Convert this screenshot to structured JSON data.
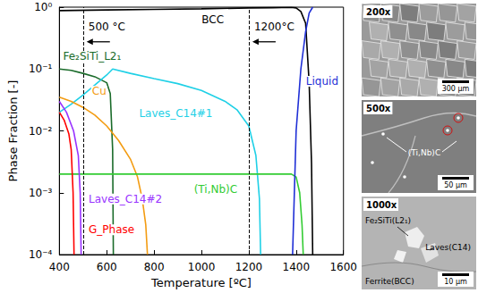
{
  "chart_data": {
    "type": "line",
    "xlabel": "Temperature [ºC]",
    "ylabel": "Phase Fraction [-]",
    "log": "y",
    "grid": false,
    "xlim": [
      400,
      1600
    ],
    "xticks": [
      400,
      600,
      800,
      1000,
      1200,
      1400,
      1600
    ],
    "ylim": [
      0.0001,
      1
    ],
    "yticks": [
      {
        "value": 0.0001,
        "label": "10⁻⁴"
      },
      {
        "value": 0.001,
        "label": "10⁻³"
      },
      {
        "value": 0.01,
        "label": "10⁻²"
      },
      {
        "value": 0.1,
        "label": "10⁻¹"
      },
      {
        "value": 1,
        "label": "10⁰"
      }
    ],
    "series": [
      {
        "name": "BCC",
        "color": "#000000",
        "x": [
          400,
          600,
          800,
          1000,
          1200,
          1300,
          1380,
          1400,
          1420,
          1440,
          1455,
          1465,
          1470
        ],
        "values": [
          0.88,
          0.9,
          0.92,
          0.94,
          0.97,
          0.98,
          0.99,
          0.97,
          0.85,
          0.55,
          0.06,
          0.003,
          0.0001
        ]
      },
      {
        "name": "Fe₂SiTi_L2₁",
        "color": "#1a6b2a",
        "x": [
          400,
          450,
          500,
          550,
          600,
          615,
          625,
          628
        ],
        "values": [
          0.1,
          0.095,
          0.085,
          0.075,
          0.06,
          0.04,
          0.005,
          0.0001
        ]
      },
      {
        "name": "Laves_C14#1",
        "color": "#1fd0e6",
        "x": [
          400,
          450,
          500,
          550,
          600,
          625,
          700,
          800,
          900,
          1000,
          1100,
          1150,
          1200,
          1230,
          1245,
          1250
        ],
        "values": [
          0.02,
          0.027,
          0.038,
          0.055,
          0.08,
          0.1,
          0.085,
          0.07,
          0.058,
          0.045,
          0.03,
          0.022,
          0.012,
          0.004,
          0.0008,
          0.0001
        ]
      },
      {
        "name": "Cu",
        "color": "#f39c12",
        "x": [
          400,
          450,
          500,
          550,
          600,
          650,
          700,
          730,
          750,
          765,
          772
        ],
        "values": [
          0.035,
          0.03,
          0.024,
          0.018,
          0.012,
          0.007,
          0.0035,
          0.0018,
          0.0008,
          0.0003,
          0.0001
        ]
      },
      {
        "name": "(Ti,Nb)C",
        "color": "#33cc33",
        "x": [
          400,
          800,
          1200,
          1380,
          1400,
          1415,
          1425,
          1430
        ],
        "values": [
          0.002,
          0.002,
          0.002,
          0.002,
          0.0018,
          0.001,
          0.0003,
          0.0001
        ]
      },
      {
        "name": "Laves_C14#2",
        "color": "#9933ff",
        "x": [
          400,
          430,
          460,
          480,
          488,
          492
        ],
        "values": [
          0.03,
          0.02,
          0.01,
          0.004,
          0.001,
          0.0001
        ]
      },
      {
        "name": "G_Phase",
        "color": "#ff0000",
        "x": [
          400,
          420,
          440,
          450,
          458,
          462
        ],
        "values": [
          0.02,
          0.015,
          0.009,
          0.005,
          0.001,
          0.0001
        ]
      },
      {
        "name": "Liquid",
        "color": "#1f2fd6",
        "x": [
          1385,
          1400,
          1420,
          1440,
          1455,
          1470
        ],
        "values": [
          0.0001,
          0.01,
          0.1,
          0.4,
          0.8,
          1.0
        ]
      }
    ],
    "vlines": [
      {
        "x": 500,
        "label": "500 °C",
        "line_style": "dashed"
      },
      {
        "x": 1200,
        "label": "1200°C",
        "line_style": "dashed"
      }
    ]
  },
  "micrographs": [
    {
      "magnification": "200x",
      "scale_bar": "300 µm",
      "labels": []
    },
    {
      "magnification": "500x",
      "scale_bar": "50 µm",
      "labels": [
        "(Ti,Nb)C"
      ]
    },
    {
      "magnification": "1000x",
      "scale_bar": "10 µm",
      "labels": [
        "Fe₂SiTi(L2₁)",
        "Laves(C14)",
        "Ferrite(BCC)"
      ]
    }
  ]
}
